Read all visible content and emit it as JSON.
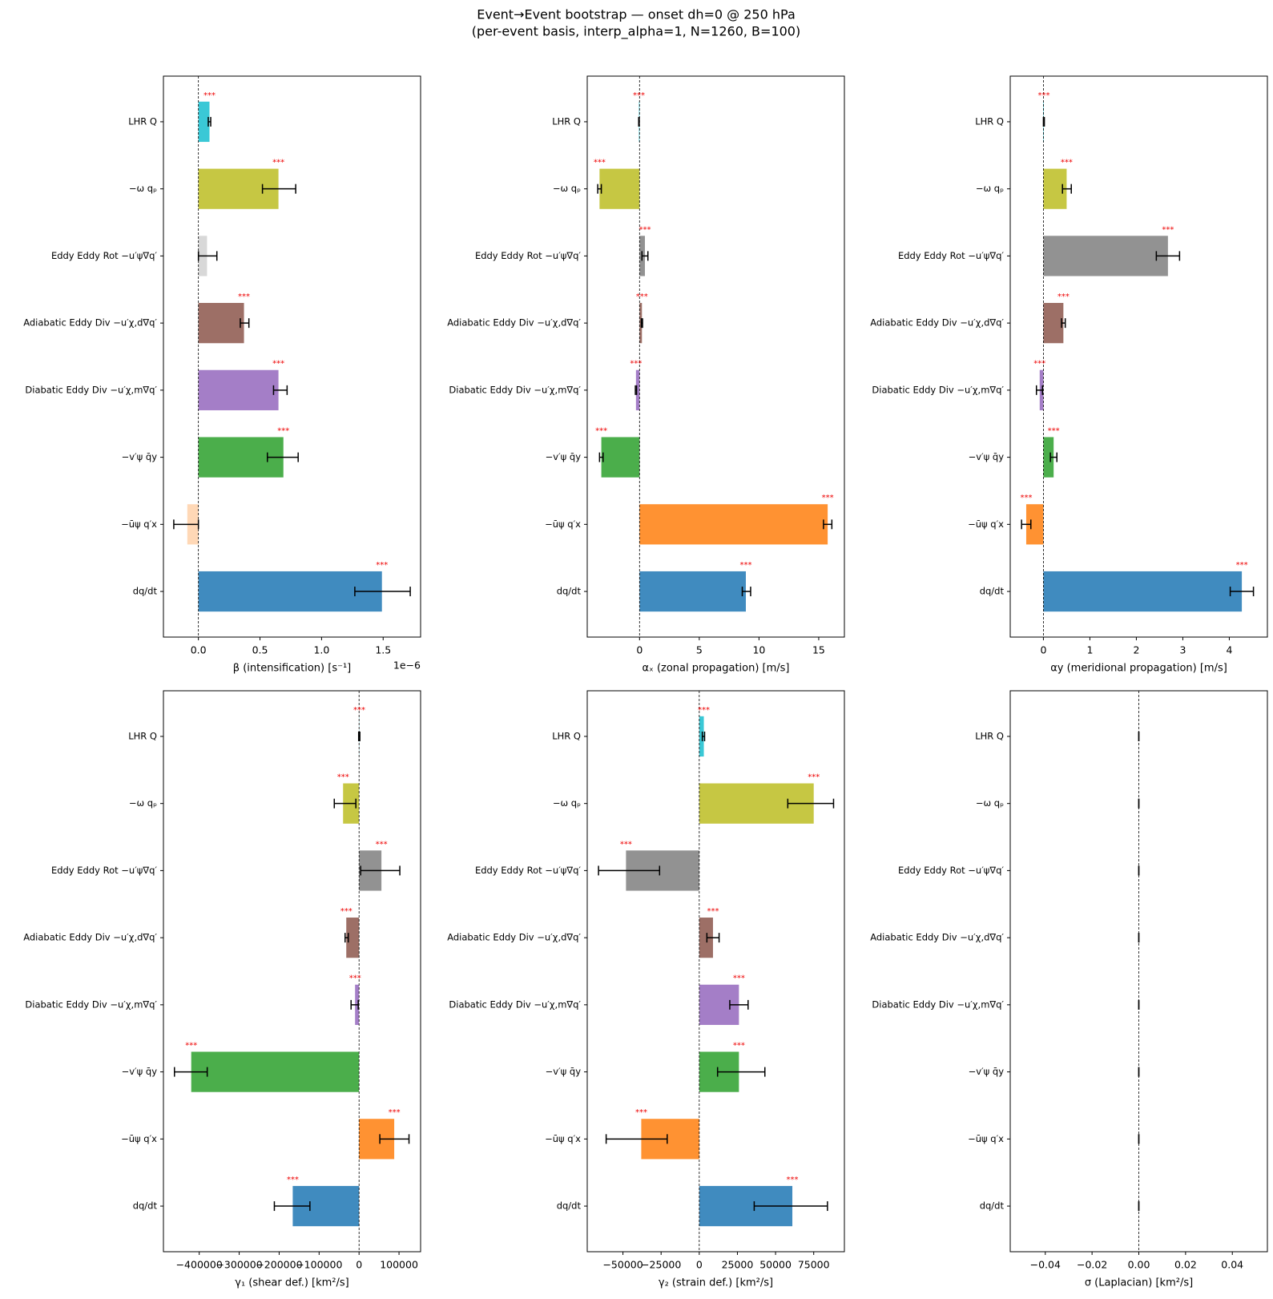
{
  "title": "Event→Event bootstrap — onset dh=0 @ 250 hPa",
  "subtitle": "(per-event basis, interp_alpha=1, N=1260, B=100)",
  "chart_data": [
    {
      "type": "barh",
      "xlabel": "β (intensification) [s⁻¹]",
      "offset_text": "1e−6",
      "categories": [
        "dq/dt",
        "−ūψ q′x",
        "−v′ψ q̄y",
        "Diabatic Eddy Div −u′χ,m∇q′",
        "Adiabatic Eddy Div −u′χ,d∇q′",
        "Eddy Eddy Rot −u′ψ∇q′",
        "−ω qₚ",
        "LHR Q"
      ],
      "colors": [
        "#1f77b4",
        "#ff7f0e",
        "#2ca02c",
        "#9467bd",
        "#8c564b",
        "#7f7f7f",
        "#bcbd22",
        "#17becf"
      ],
      "values": [
        1.49,
        -0.09,
        0.69,
        0.65,
        0.37,
        0.07,
        0.65,
        0.09
      ],
      "ci_low": [
        1.27,
        -0.2,
        0.56,
        0.61,
        0.34,
        0.0,
        0.52,
        0.08
      ],
      "ci_high": [
        1.72,
        0.0,
        0.81,
        0.72,
        0.41,
        0.15,
        0.79,
        0.1
      ],
      "significance": [
        "***",
        null,
        "***",
        "***",
        "***",
        null,
        "***",
        "***"
      ],
      "xlim": [
        -0.284,
        1.804
      ],
      "xticks": [
        {
          "value": 0,
          "label": "0.0"
        },
        {
          "value": 0.5,
          "label": "0.5"
        },
        {
          "value": 1,
          "label": "1.0"
        },
        {
          "value": 1.5,
          "label": "1.5"
        }
      ]
    },
    {
      "type": "barh",
      "xlabel": "αₓ (zonal propagation) [m/s]",
      "categories": [
        "dq/dt",
        "−ūψ q′x",
        "−v′ψ q̄y",
        "Diabatic Eddy Div −u′χ,m∇q′",
        "Adiabatic Eddy Div −u′χ,d∇q′",
        "Eddy Eddy Rot −u′ψ∇q′",
        "−ω qₚ",
        "LHR Q"
      ],
      "colors": [
        "#1f77b4",
        "#ff7f0e",
        "#2ca02c",
        "#9467bd",
        "#8c564b",
        "#7f7f7f",
        "#bcbd22",
        "#17becf"
      ],
      "values": [
        8.9,
        15.75,
        -3.2,
        -0.3,
        0.2,
        0.45,
        -3.35,
        -0.05
      ],
      "ci_low": [
        8.6,
        15.4,
        -3.35,
        -0.35,
        0.15,
        0.2,
        -3.5,
        -0.07
      ],
      "ci_high": [
        9.3,
        16.1,
        -3.05,
        -0.25,
        0.25,
        0.7,
        -3.2,
        -0.03
      ],
      "significance": [
        "***",
        "***",
        "***",
        "***",
        "***",
        "***",
        "***",
        "***"
      ],
      "xlim": [
        -4.38,
        17.15
      ],
      "xticks": [
        0,
        5,
        10,
        15
      ]
    },
    {
      "type": "barh",
      "xlabel": "αy (meridional propagation) [m/s]",
      "categories": [
        "dq/dt",
        "−ūψ q′x",
        "−v′ψ q̄y",
        "Diabatic Eddy Div −u′χ,m∇q′",
        "Adiabatic Eddy Div −u′χ,d∇q′",
        "Eddy Eddy Rot −u′ψ∇q′",
        "−ω qₚ",
        "LHR Q"
      ],
      "colors": [
        "#1f77b4",
        "#ff7f0e",
        "#2ca02c",
        "#9467bd",
        "#8c564b",
        "#7f7f7f",
        "#bcbd22",
        "#17becf"
      ],
      "values": [
        4.27,
        -0.37,
        0.22,
        -0.08,
        0.43,
        2.68,
        0.5,
        0.01
      ],
      "ci_low": [
        4.02,
        -0.47,
        0.15,
        -0.15,
        0.39,
        2.43,
        0.41,
        0.0
      ],
      "ci_high": [
        4.52,
        -0.27,
        0.29,
        -0.02,
        0.47,
        2.93,
        0.6,
        0.02
      ],
      "significance": [
        "***",
        "***",
        "***",
        "***",
        "***",
        "***",
        "***",
        "***"
      ],
      "xlim": [
        -0.714,
        4.82
      ],
      "xticks": [
        0,
        1,
        2,
        3,
        4
      ]
    },
    {
      "type": "barh",
      "xlabel": "γ₁ (shear def.) [km²/s]",
      "categories": [
        "dq/dt",
        "−ūψ q′x",
        "−v′ψ q̄y",
        "Diabatic Eddy Div −u′χ,m∇q′",
        "Adiabatic Eddy Div −u′χ,d∇q′",
        "Eddy Eddy Rot −u′ψ∇q′",
        "−ω qₚ",
        "LHR Q"
      ],
      "colors": [
        "#1f77b4",
        "#ff7f0e",
        "#2ca02c",
        "#9467bd",
        "#8c564b",
        "#7f7f7f",
        "#bcbd22",
        "#17becf"
      ],
      "values": [
        -166000,
        88000,
        -420000,
        -10000,
        -32000,
        56000,
        -40000,
        500
      ],
      "ci_low": [
        -212000,
        52000,
        -462000,
        -20000,
        -35000,
        4000,
        -62000,
        -1000
      ],
      "ci_high": [
        -123000,
        125000,
        -380000,
        -2000,
        -27000,
        102000,
        -8000,
        2000
      ],
      "significance": [
        "***",
        "***",
        "***",
        "***",
        "***",
        "***",
        "***",
        "***"
      ],
      "xlim": [
        -489600,
        154000
      ],
      "xticks": [
        {
          "value": -400000,
          "label": "−400000"
        },
        {
          "value": -300000,
          "label": "−300000"
        },
        {
          "value": -200000,
          "label": "−200000"
        },
        {
          "value": -100000,
          "label": "−100000"
        },
        0,
        100000
      ]
    },
    {
      "type": "barh",
      "xlabel": "γ₂ (strain def.) [km²/s]",
      "categories": [
        "dq/dt",
        "−ūψ q′x",
        "−v′ψ q̄y",
        "Diabatic Eddy Div −u′χ,m∇q′",
        "Adiabatic Eddy Div −u′χ,d∇q′",
        "Eddy Eddy Rot −u′ψ∇q′",
        "−ω qₚ",
        "LHR Q"
      ],
      "colors": [
        "#1f77b4",
        "#ff7f0e",
        "#2ca02c",
        "#9467bd",
        "#8c564b",
        "#7f7f7f",
        "#bcbd22",
        "#17becf"
      ],
      "values": [
        61000,
        -38000,
        26000,
        26000,
        9000,
        -48000,
        75000,
        3000
      ],
      "ci_low": [
        36000,
        -61000,
        12000,
        20000,
        5000,
        -66000,
        58000,
        2000
      ],
      "ci_high": [
        84000,
        -21000,
        43000,
        32000,
        13000,
        -26000,
        88000,
        3500
      ],
      "significance": [
        "***",
        "***",
        "***",
        "***",
        "***",
        "***",
        "***",
        "***"
      ],
      "xlim": [
        -73400,
        95100
      ],
      "xticks": [
        {
          "value": -50000,
          "label": "−50000"
        },
        {
          "value": -25000,
          "label": "−25000"
        },
        0,
        25000,
        50000,
        75000
      ]
    },
    {
      "type": "barh",
      "xlabel": "σ (Laplacian) [km²/s]",
      "categories": [
        "dq/dt",
        "−ūψ q′x",
        "−v′ψ q̄y",
        "Diabatic Eddy Div −u′χ,m∇q′",
        "Adiabatic Eddy Div −u′χ,d∇q′",
        "Eddy Eddy Rot −u′ψ∇q′",
        "−ω qₚ",
        "LHR Q"
      ],
      "colors": [
        "#1f77b4",
        "#ff7f0e",
        "#2ca02c",
        "#9467bd",
        "#8c564b",
        "#7f7f7f",
        "#bcbd22",
        "#17becf"
      ],
      "values": [
        0,
        0,
        0,
        0,
        0,
        0,
        0,
        0
      ],
      "ci_low": [
        0,
        0,
        0,
        0,
        0,
        0,
        0,
        0
      ],
      "ci_high": [
        0,
        0,
        0,
        0,
        0,
        0,
        0,
        0
      ],
      "xlim": [
        -0.055,
        0.055
      ],
      "xticks": [
        {
          "value": -0.04,
          "label": "−0.04"
        },
        {
          "value": -0.02,
          "label": "−0.02"
        },
        {
          "value": 0,
          "label": "0.00"
        },
        {
          "value": 0.02,
          "label": "0.02"
        },
        {
          "value": 0.04,
          "label": "0.04"
        }
      ]
    }
  ]
}
